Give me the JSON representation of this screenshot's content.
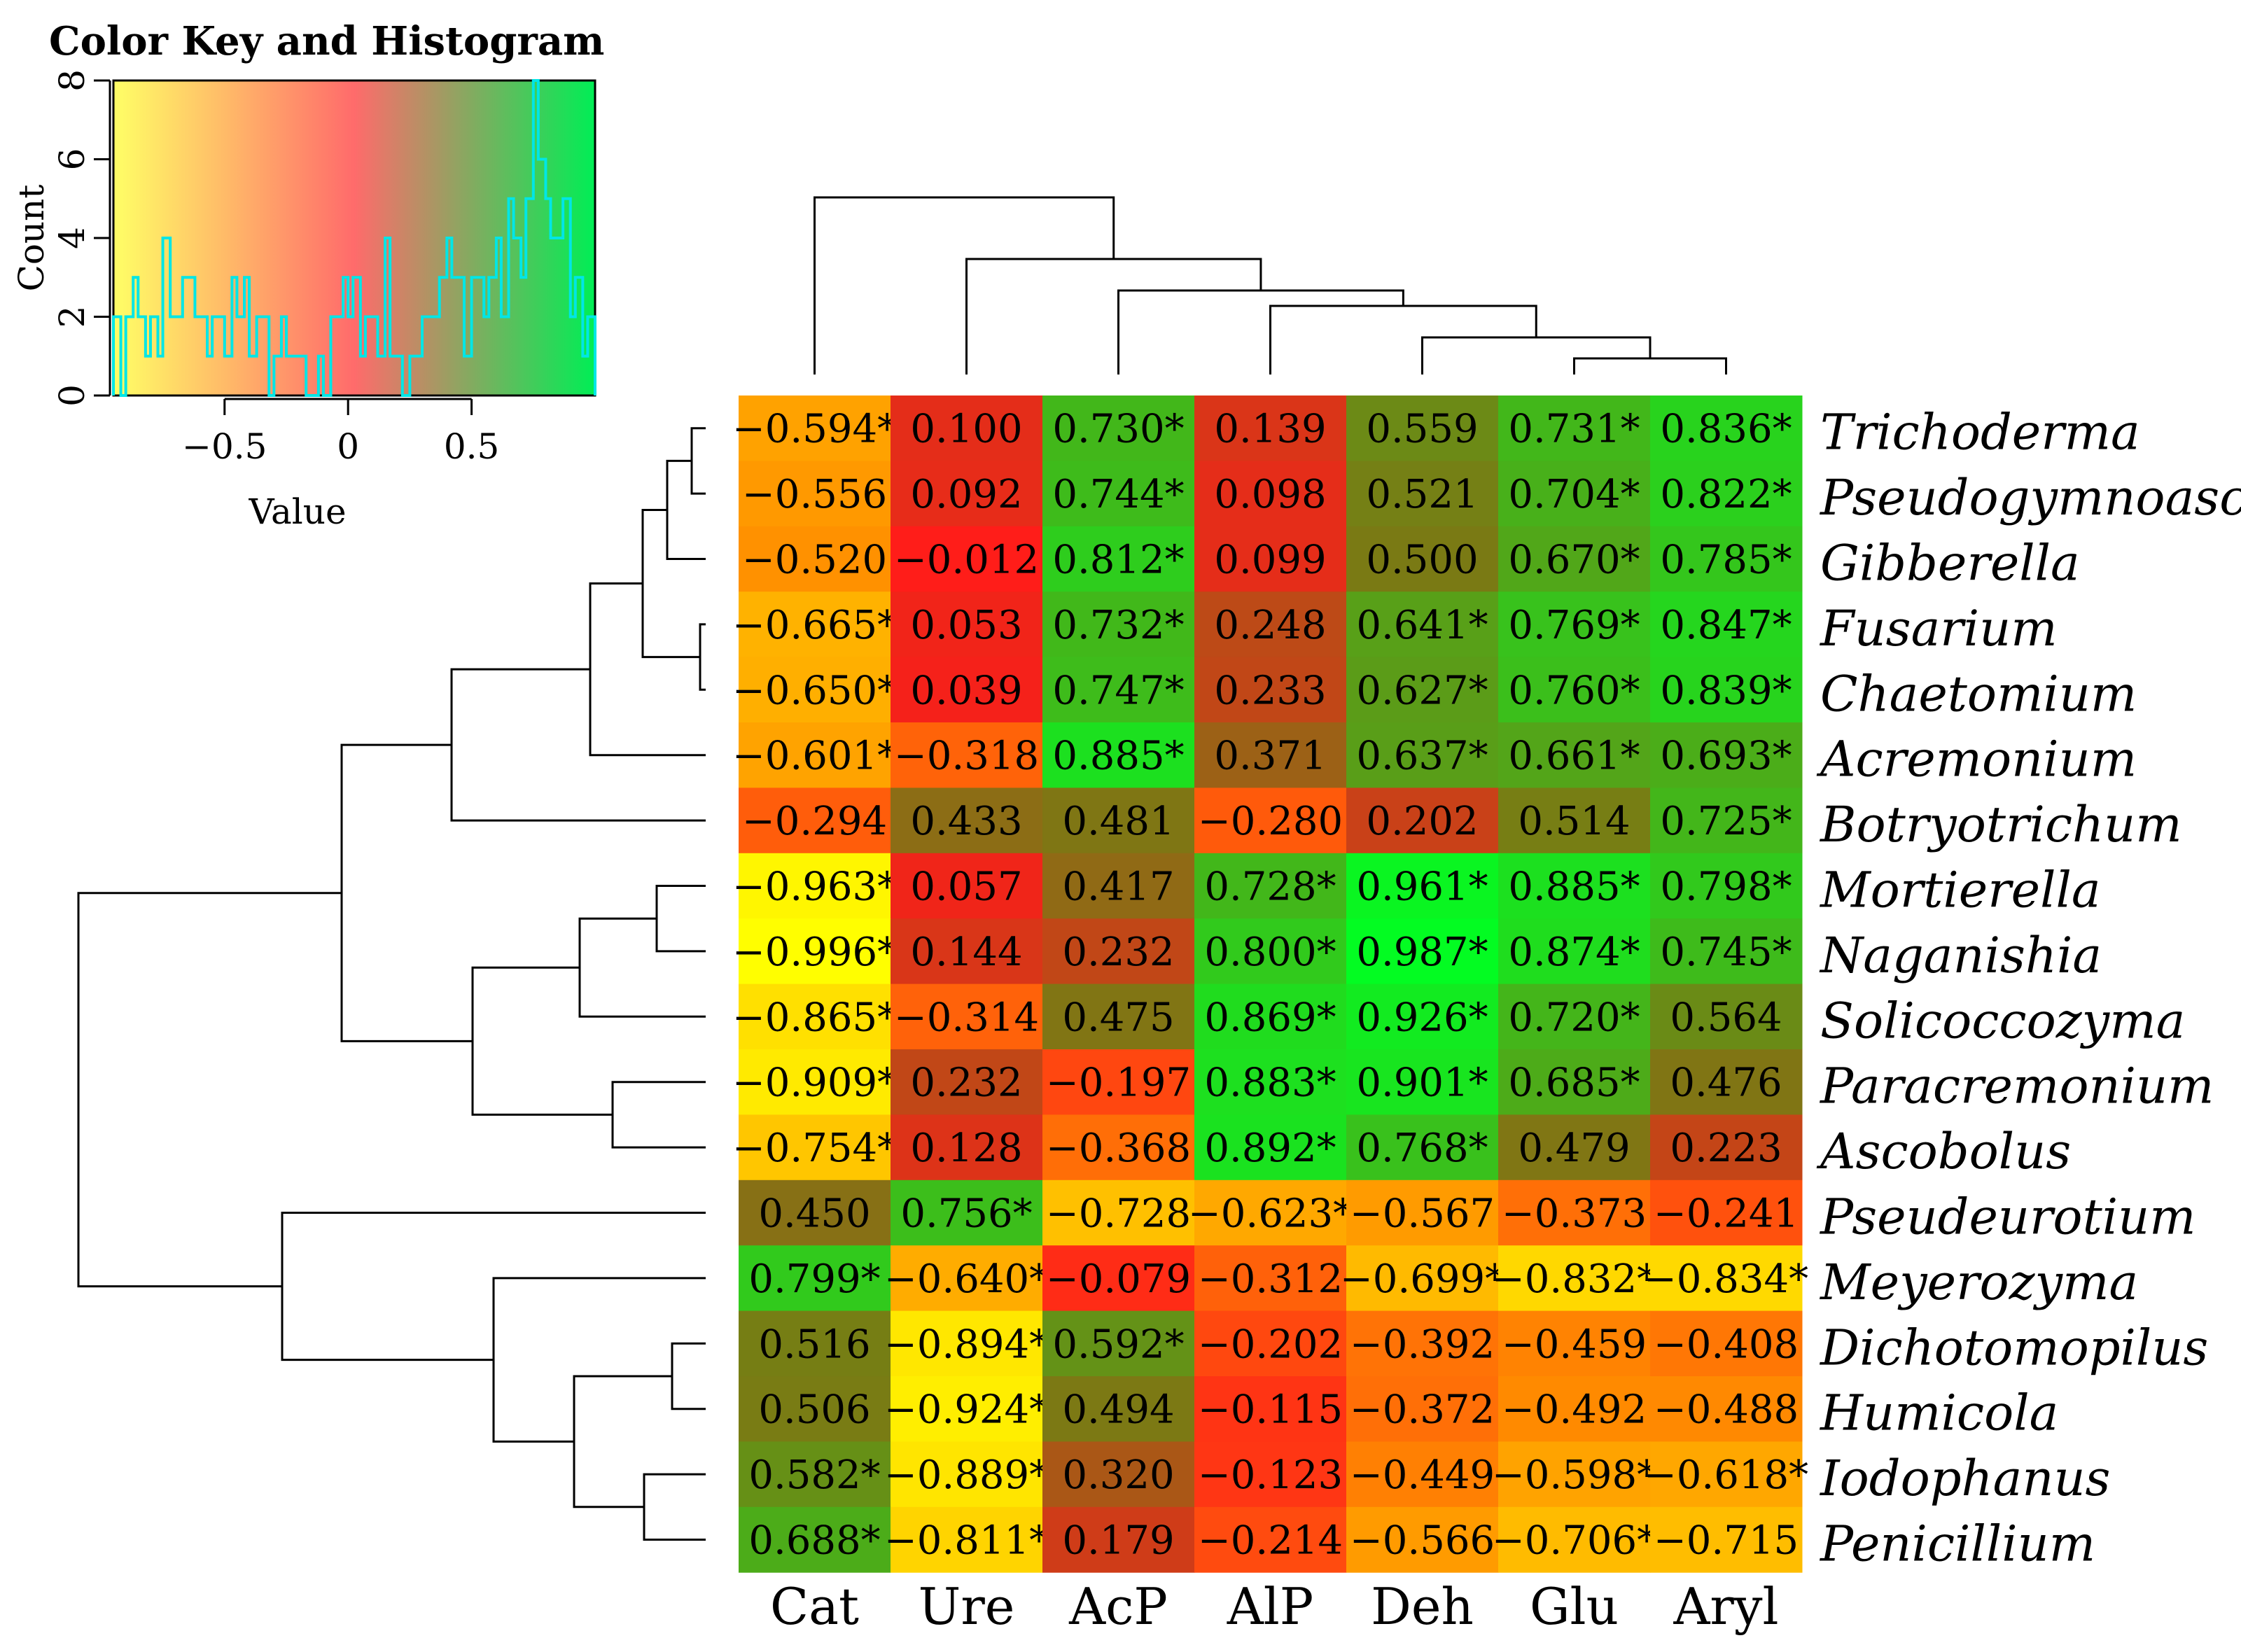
{
  "chart_data": {
    "type": "heatmap",
    "color_key": {
      "title": "Color Key and Histogram",
      "xlabel": "Value",
      "ylabel": "Count",
      "x_range": [
        -0.95,
        1.0
      ],
      "y_range": [
        0,
        8
      ],
      "x_ticks": [
        -0.5,
        0,
        0.5
      ],
      "x_tick_labels": [
        "−0.5",
        "0",
        "0.5"
      ],
      "y_ticks": [
        0,
        2,
        4,
        6,
        8
      ],
      "y_tick_labels": [
        "0",
        "2",
        "4",
        "6",
        "8"
      ],
      "histogram_bins": [
        -0.95,
        -0.92,
        -0.9,
        -0.87,
        -0.85,
        -0.82,
        -0.8,
        -0.77,
        -0.75,
        -0.72,
        -0.7,
        -0.67,
        -0.65,
        -0.62,
        -0.6,
        -0.57,
        -0.55,
        -0.52,
        -0.5,
        -0.47,
        -0.45,
        -0.42,
        -0.4,
        -0.37,
        -0.35,
        -0.32,
        -0.3,
        -0.27,
        -0.25,
        -0.22,
        -0.2,
        -0.17,
        -0.15,
        -0.12,
        -0.1,
        -0.07,
        -0.05,
        -0.02,
        0.0,
        0.02,
        0.05,
        0.07,
        0.1,
        0.12,
        0.15,
        0.17,
        0.2,
        0.22,
        0.25,
        0.27,
        0.3,
        0.32,
        0.35,
        0.37,
        0.4,
        0.42,
        0.45,
        0.47,
        0.5,
        0.52,
        0.55,
        0.57,
        0.6,
        0.62,
        0.65,
        0.67,
        0.7,
        0.72,
        0.75,
        0.77,
        0.8,
        0.82,
        0.85,
        0.87,
        0.9,
        0.92,
        0.95,
        0.97,
        1.0
      ],
      "histogram_counts": [
        2,
        0,
        2,
        3,
        2,
        1,
        2,
        1,
        4,
        2,
        2,
        3,
        3,
        2,
        2,
        1,
        2,
        2,
        1,
        3,
        2,
        3,
        1,
        2,
        2,
        0,
        1,
        2,
        1,
        1,
        1,
        0,
        0,
        1,
        0,
        2,
        2,
        3,
        2,
        3,
        1,
        2,
        2,
        1,
        4,
        1,
        1,
        0,
        1,
        1,
        2,
        2,
        2,
        3,
        4,
        3,
        3,
        1,
        3,
        3,
        2,
        3,
        4,
        2,
        5,
        4,
        3,
        5,
        8,
        6,
        5,
        4,
        4,
        5,
        2,
        3,
        1,
        2
      ],
      "gradient_colors": [
        "#ffff66",
        "#ff6b6b",
        "#00ee55"
      ],
      "histogram_color": "#00e6e6"
    },
    "columns": [
      "Cat",
      "Ure",
      "AcP",
      "AlP",
      "Deh",
      "Glu",
      "Aryl"
    ],
    "rows": [
      "Trichoderma",
      "Pseudogymnoascus",
      "Gibberella",
      "Fusarium",
      "Chaetomium",
      "Acremonium",
      "Botryotrichum",
      "Mortierella",
      "Naganishia",
      "Solicoccozyma",
      "Paracremonium",
      "Ascobolus",
      "Pseudeurotium",
      "Meyerozyma",
      "Dichotomopilus",
      "Humicola",
      "Iodophanus",
      "Penicillium"
    ],
    "values": [
      [
        -0.594,
        0.1,
        0.73,
        0.139,
        0.559,
        0.731,
        0.836
      ],
      [
        -0.556,
        0.092,
        0.744,
        0.098,
        0.521,
        0.704,
        0.822
      ],
      [
        -0.52,
        -0.012,
        0.812,
        0.099,
        0.5,
        0.67,
        0.785
      ],
      [
        -0.665,
        0.053,
        0.732,
        0.248,
        0.641,
        0.769,
        0.847
      ],
      [
        -0.65,
        0.039,
        0.747,
        0.233,
        0.627,
        0.76,
        0.839
      ],
      [
        -0.601,
        -0.318,
        0.885,
        0.371,
        0.637,
        0.661,
        0.693
      ],
      [
        -0.294,
        0.433,
        0.481,
        -0.28,
        0.202,
        0.514,
        0.725
      ],
      [
        -0.963,
        0.057,
        0.417,
        0.728,
        0.961,
        0.885,
        0.798
      ],
      [
        -0.996,
        0.144,
        0.232,
        0.8,
        0.987,
        0.874,
        0.745
      ],
      [
        -0.865,
        -0.314,
        0.475,
        0.869,
        0.926,
        0.72,
        0.564
      ],
      [
        -0.909,
        0.232,
        -0.197,
        0.883,
        0.901,
        0.685,
        0.476
      ],
      [
        -0.754,
        0.128,
        -0.368,
        0.892,
        0.768,
        0.479,
        0.223
      ],
      [
        0.45,
        0.756,
        -0.728,
        -0.623,
        -0.567,
        -0.373,
        -0.241
      ],
      [
        0.799,
        -0.64,
        -0.079,
        -0.312,
        -0.699,
        -0.832,
        -0.834
      ],
      [
        0.516,
        -0.894,
        0.592,
        -0.202,
        -0.392,
        -0.459,
        -0.408
      ],
      [
        0.506,
        -0.924,
        0.494,
        -0.115,
        -0.372,
        -0.492,
        -0.488
      ],
      [
        0.582,
        -0.889,
        0.32,
        -0.123,
        -0.449,
        -0.598,
        -0.618
      ],
      [
        0.688,
        -0.811,
        0.179,
        -0.214,
        -0.566,
        -0.706,
        -0.715
      ]
    ],
    "cell_labels": [
      [
        "−0.594*",
        "0.100",
        "0.730*",
        "0.139",
        "0.559",
        "0.731*",
        "0.836*"
      ],
      [
        "−0.556",
        "0.092",
        "0.744*",
        "0.098",
        "0.521",
        "0.704*",
        "0.822*"
      ],
      [
        "−0.520",
        "−0.012",
        "0.812*",
        "0.099",
        "0.500",
        "0.670*",
        "0.785*"
      ],
      [
        "−0.665*",
        "0.053",
        "0.732*",
        "0.248",
        "0.641*",
        "0.769*",
        "0.847*"
      ],
      [
        "−0.650*",
        "0.039",
        "0.747*",
        "0.233",
        "0.627*",
        "0.760*",
        "0.839*"
      ],
      [
        "−0.601*",
        "−0.318",
        "0.885*",
        "0.371",
        "0.637*",
        "0.661*",
        "0.693*"
      ],
      [
        "−0.294",
        "0.433",
        "0.481",
        "−0.280",
        "0.202",
        "0.514",
        "0.725*"
      ],
      [
        "−0.963*",
        "0.057",
        "0.417",
        "0.728*",
        "0.961*",
        "0.885*",
        "0.798*"
      ],
      [
        "−0.996*",
        "0.144",
        "0.232",
        "0.800*",
        "0.987*",
        "0.874*",
        "0.745*"
      ],
      [
        "−0.865*",
        "−0.314",
        "0.475",
        "0.869*",
        "0.926*",
        "0.720*",
        "0.564"
      ],
      [
        "−0.909*",
        "0.232",
        "−0.197",
        "0.883*",
        "0.901*",
        "0.685*",
        "0.476"
      ],
      [
        "−0.754*",
        "0.128",
        "−0.368",
        "0.892*",
        "0.768*",
        "0.479",
        "0.223"
      ],
      [
        "0.450",
        "0.756*",
        "−0.728",
        "−0.623*",
        "−0.567",
        "−0.373",
        "−0.241"
      ],
      [
        "0.799*",
        "−0.640*",
        "−0.079",
        "−0.312",
        "−0.699*",
        "−0.832*",
        "−0.834*"
      ],
      [
        "0.516",
        "−0.894*",
        "0.592*",
        "−0.202",
        "−0.392",
        "−0.459",
        "−0.408"
      ],
      [
        "0.506",
        "−0.924*",
        "0.494",
        "−0.115",
        "−0.372",
        "−0.492",
        "−0.488"
      ],
      [
        "0.582*",
        "−0.889*",
        "0.320",
        "−0.123",
        "−0.449",
        "−0.598*",
        "−0.618*"
      ],
      [
        "0.688*",
        "−0.811*",
        "0.179",
        "−0.214",
        "−0.566",
        "−0.706*",
        "−0.715"
      ]
    ],
    "color_scale": {
      "low": "#ffff00",
      "mid_low": "#ff8c00",
      "zero": "#ff1a1a",
      "mid_high": "#7a7a14",
      "high": "#00ff22"
    },
    "column_dendrogram": [
      {
        "left": "Deh",
        "right": "Glu+Aryl",
        "members": [
          "Deh",
          "Glu",
          "Aryl"
        ]
      },
      {
        "left": "Glu",
        "right": "Aryl",
        "members": [
          "Glu",
          "Aryl"
        ]
      },
      {
        "left": "AlP",
        "right": "Deh+Glu+Aryl",
        "members": [
          "AlP",
          "Deh",
          "Glu",
          "Aryl"
        ]
      },
      {
        "left": "AcP",
        "right": "AlP+Deh+Glu+Aryl",
        "members": [
          "AcP",
          "AlP",
          "Deh",
          "Glu",
          "Aryl"
        ]
      },
      {
        "left": "Ure",
        "right": "AcP+AlP+Deh+Glu+Aryl",
        "members": [
          "Ure",
          "AcP",
          "AlP",
          "Deh",
          "Glu",
          "Aryl"
        ]
      },
      {
        "left": "Cat",
        "right": "rest",
        "members": [
          "Cat",
          "Ure",
          "AcP",
          "AlP",
          "Deh",
          "Glu",
          "Aryl"
        ]
      }
    ],
    "row_dendrogram_order": "as listed in rows"
  }
}
